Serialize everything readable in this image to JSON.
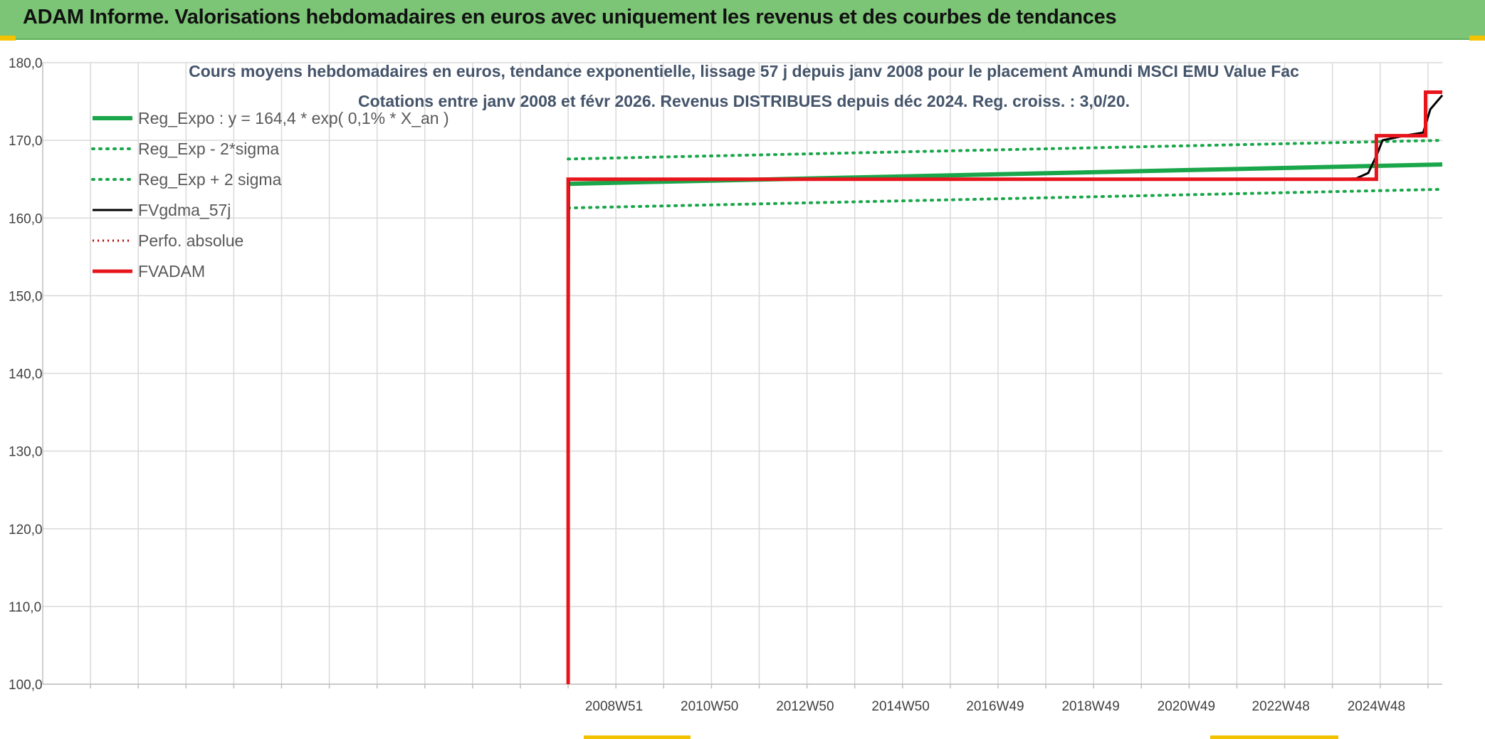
{
  "header": {
    "title": "ADAM Informe. Valorisations hebdomadaires en euros avec uniquement les revenus et des courbes de tendances"
  },
  "colors": {
    "header_bg": "#7cc576",
    "regression": "#1aa64a",
    "fvgdma": "#000000",
    "perfo": "#c00000",
    "fvadam": "#e8141b",
    "grid": "#d9d9d9",
    "text": "#404040",
    "title_text": "#44546a"
  },
  "chart_data": {
    "type": "line",
    "title_line1": "Cours moyens hebdomadaires en euros, tendance exponentielle, lissage 57 j depuis janv 2008 pour le placement Amundi MSCI EMU Value Fac",
    "title_line2": "Cotations entre janv 2008 et févr 2026. Revenus DISTRIBUES depuis déc 2024. Reg. croiss. : 3,0/20.",
    "xlabel": "",
    "ylabel": "",
    "ylim": [
      100,
      180
    ],
    "yticks": [
      "100,0",
      "110,0",
      "120,0",
      "130,0",
      "140,0",
      "150,0",
      "160,0",
      "170,0",
      "180,0"
    ],
    "xlim": [
      1997.0,
      2026.3
    ],
    "xticks": [
      {
        "x": 2008.96,
        "label": "2008W51"
      },
      {
        "x": 2010.96,
        "label": "2010W50"
      },
      {
        "x": 2012.96,
        "label": "2012W50"
      },
      {
        "x": 2014.96,
        "label": "2014W50"
      },
      {
        "x": 2016.94,
        "label": "2016W49"
      },
      {
        "x": 2018.94,
        "label": "2018W49"
      },
      {
        "x": 2020.94,
        "label": "2020W49"
      },
      {
        "x": 2022.92,
        "label": "2022W48"
      },
      {
        "x": 2024.92,
        "label": "2024W48"
      }
    ],
    "grid_x": [
      1998,
      1999,
      2000,
      2001,
      2002,
      2003,
      2004,
      2005,
      2006,
      2007,
      2008,
      2009,
      2010,
      2011,
      2012,
      2013,
      2014,
      2015,
      2016,
      2017,
      2018,
      2019,
      2020,
      2021,
      2022,
      2023,
      2024,
      2025,
      2026
    ],
    "legend_position": "top-left",
    "series": [
      {
        "name": "Reg_Expo : y = 164,4 * exp( 0,1% *  X_an )",
        "style": "solid-thick-green",
        "x": [
          2008.0,
          2026.3
        ],
        "y": [
          164.4,
          166.9
        ]
      },
      {
        "name": "Reg_Exp - 2*sigma",
        "style": "dotted-green",
        "x": [
          2008.0,
          2026.3
        ],
        "y": [
          167.6,
          170.0
        ]
      },
      {
        "name": "Reg_Exp + 2 sigma",
        "style": "dotted-green",
        "x": [
          2008.0,
          2026.3
        ],
        "y": [
          161.3,
          163.7
        ]
      },
      {
        "name": "FVgdma_57j",
        "style": "solid-black",
        "x": [
          2008.0,
          2008.02,
          2024.0,
          2024.5,
          2024.75,
          2024.92,
          2025.05,
          2025.5,
          2025.9,
          2026.05,
          2026.3
        ],
        "y": [
          100.0,
          165.0,
          165.0,
          165.1,
          165.8,
          168.0,
          170.0,
          170.6,
          171.0,
          174.0,
          175.8
        ]
      },
      {
        "name": "Perfo. absolue",
        "style": "dotted-red",
        "x": [],
        "y": []
      },
      {
        "name": "FVADAM",
        "style": "solid-thick-red",
        "x": [
          2008.0,
          2008.0,
          2024.92,
          2024.92,
          2025.95,
          2025.95,
          2026.3
        ],
        "y": [
          100.0,
          165.0,
          165.0,
          170.6,
          170.6,
          176.2,
          176.2
        ]
      }
    ]
  }
}
